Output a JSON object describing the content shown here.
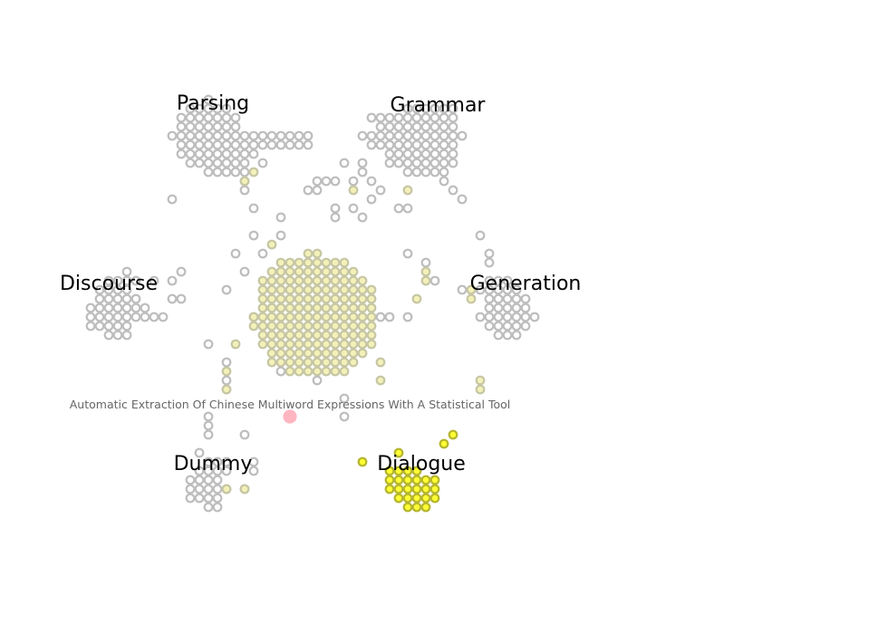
{
  "clusters": [
    {
      "key": "parsing",
      "label": "Parsing"
    },
    {
      "key": "grammar",
      "label": "Grammar"
    },
    {
      "key": "discourse",
      "label": "Discourse"
    },
    {
      "key": "generation",
      "label": "Generation"
    },
    {
      "key": "dummy",
      "label": "Dummy"
    },
    {
      "key": "dialogue",
      "label": "Dialogue"
    }
  ],
  "highlight": {
    "title": "Automatic Extraction Of Chinese Multiword Expressions With A Statistical Tool"
  },
  "colors": {
    "node_stroke": "#bdbdbd",
    "node_fill": "#ffffff",
    "pale_fill": "#f3f1b8",
    "pale_stroke": "#c6c6a4",
    "yellow_fill": "#ffff33",
    "yellow_stroke": "#b5b52e",
    "highlight_fill": "#ffb6c1",
    "highlight_stroke": "#ffb6c1"
  }
}
